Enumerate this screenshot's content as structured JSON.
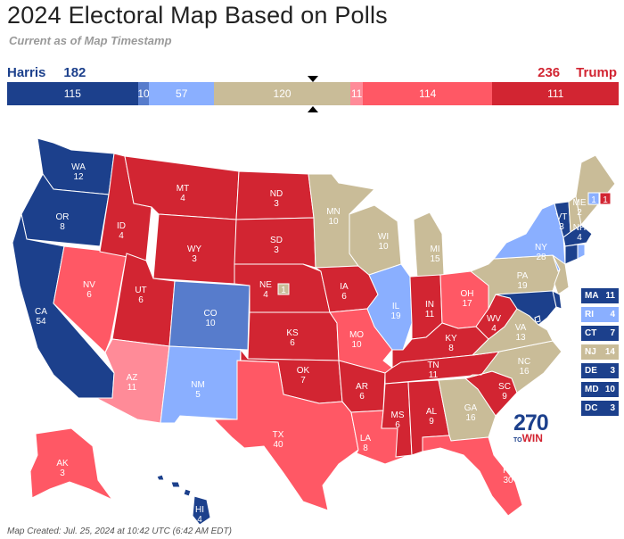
{
  "title": "2024 Electoral Map Based on Polls",
  "subtitle": "Current as of Map Timestamp",
  "left_candidate": {
    "name": "Harris",
    "votes": "182"
  },
  "right_candidate": {
    "name": "Trump",
    "votes": "236"
  },
  "colors": {
    "safe_d": "#1c408c",
    "likely_d": "#577ccc",
    "lean_d": "#8aafff",
    "tossup": "#c9bc98",
    "lean_r": "#ff8b98",
    "likely_r": "#ff5865",
    "safe_r": "#d22532"
  },
  "bar_segments": [
    {
      "label": "115",
      "value": 115,
      "color": "#1c408c"
    },
    {
      "label": "10",
      "value": 10,
      "color": "#577ccc"
    },
    {
      "label": "57",
      "value": 57,
      "color": "#8aafff"
    },
    {
      "label": "120",
      "value": 120,
      "color": "#c9bc98"
    },
    {
      "label": "11",
      "value": 11,
      "color": "#ff8b98"
    },
    {
      "label": "114",
      "value": 114,
      "color": "#ff5865"
    },
    {
      "label": "111",
      "value": 111,
      "color": "#d22532"
    }
  ],
  "states": [
    {
      "abbr": "WA",
      "ev": "12",
      "rating": "safe_d"
    },
    {
      "abbr": "OR",
      "ev": "8",
      "rating": "safe_d"
    },
    {
      "abbr": "CA",
      "ev": "54",
      "rating": "safe_d"
    },
    {
      "abbr": "NV",
      "ev": "6",
      "rating": "likely_r"
    },
    {
      "abbr": "ID",
      "ev": "4",
      "rating": "safe_r"
    },
    {
      "abbr": "MT",
      "ev": "4",
      "rating": "safe_r"
    },
    {
      "abbr": "WY",
      "ev": "3",
      "rating": "safe_r"
    },
    {
      "abbr": "UT",
      "ev": "6",
      "rating": "safe_r"
    },
    {
      "abbr": "AZ",
      "ev": "11",
      "rating": "lean_r"
    },
    {
      "abbr": "CO",
      "ev": "10",
      "rating": "likely_d"
    },
    {
      "abbr": "NM",
      "ev": "5",
      "rating": "lean_d"
    },
    {
      "abbr": "ND",
      "ev": "3",
      "rating": "safe_r"
    },
    {
      "abbr": "SD",
      "ev": "3",
      "rating": "safe_r"
    },
    {
      "abbr": "NE",
      "ev": "4",
      "rating": "safe_r"
    },
    {
      "abbr": "KS",
      "ev": "6",
      "rating": "safe_r"
    },
    {
      "abbr": "OK",
      "ev": "7",
      "rating": "safe_r"
    },
    {
      "abbr": "TX",
      "ev": "40",
      "rating": "likely_r"
    },
    {
      "abbr": "MN",
      "ev": "10",
      "rating": "tossup"
    },
    {
      "abbr": "IA",
      "ev": "6",
      "rating": "safe_r"
    },
    {
      "abbr": "MO",
      "ev": "10",
      "rating": "likely_r"
    },
    {
      "abbr": "AR",
      "ev": "6",
      "rating": "safe_r"
    },
    {
      "abbr": "LA",
      "ev": "8",
      "rating": "likely_r"
    },
    {
      "abbr": "WI",
      "ev": "10",
      "rating": "tossup"
    },
    {
      "abbr": "IL",
      "ev": "19",
      "rating": "lean_d"
    },
    {
      "abbr": "MI",
      "ev": "15",
      "rating": "tossup"
    },
    {
      "abbr": "IN",
      "ev": "11",
      "rating": "safe_r"
    },
    {
      "abbr": "OH",
      "ev": "17",
      "rating": "likely_r"
    },
    {
      "abbr": "KY",
      "ev": "8",
      "rating": "safe_r"
    },
    {
      "abbr": "TN",
      "ev": "11",
      "rating": "safe_r"
    },
    {
      "abbr": "MS",
      "ev": "6",
      "rating": "safe_r"
    },
    {
      "abbr": "AL",
      "ev": "9",
      "rating": "safe_r"
    },
    {
      "abbr": "GA",
      "ev": "16",
      "rating": "tossup"
    },
    {
      "abbr": "FL",
      "ev": "30",
      "rating": "likely_r"
    },
    {
      "abbr": "SC",
      "ev": "9",
      "rating": "safe_r"
    },
    {
      "abbr": "NC",
      "ev": "16",
      "rating": "tossup"
    },
    {
      "abbr": "VA",
      "ev": "13",
      "rating": "tossup"
    },
    {
      "abbr": "WV",
      "ev": "4",
      "rating": "safe_r"
    },
    {
      "abbr": "PA",
      "ev": "19",
      "rating": "tossup"
    },
    {
      "abbr": "NY",
      "ev": "28",
      "rating": "lean_d"
    },
    {
      "abbr": "VT",
      "ev": "3",
      "rating": "safe_d"
    },
    {
      "abbr": "NH",
      "ev": "4",
      "rating": "tossup"
    },
    {
      "abbr": "ME",
      "ev": "2",
      "rating": "tossup"
    },
    {
      "abbr": "AK",
      "ev": "3",
      "rating": "likely_r"
    },
    {
      "abbr": "HI",
      "ev": "4",
      "rating": "safe_d"
    }
  ],
  "district_boxes": {
    "ne2": {
      "ev": "1",
      "rating": "tossup"
    },
    "me1": {
      "ev": "1",
      "rating": "lean_d"
    },
    "me2": {
      "ev": "1",
      "rating": "safe_r"
    }
  },
  "small_states": [
    {
      "abbr": "MA",
      "ev": "11",
      "color": "#1c408c"
    },
    {
      "abbr": "RI",
      "ev": "4",
      "color": "#8aafff"
    },
    {
      "abbr": "CT",
      "ev": "7",
      "color": "#1c408c"
    },
    {
      "abbr": "NJ",
      "ev": "14",
      "color": "#c9bc98"
    },
    {
      "abbr": "DE",
      "ev": "3",
      "color": "#1c408c"
    },
    {
      "abbr": "MD",
      "ev": "10",
      "color": "#1c408c"
    },
    {
      "abbr": "DC",
      "ev": "3",
      "color": "#1c408c"
    }
  ],
  "logo": {
    "number": "270",
    "to": "TO",
    "win": "WIN"
  },
  "footer": "Map Created: Jul. 25, 2024 at 10:42 UTC (6:42 AM EDT)"
}
